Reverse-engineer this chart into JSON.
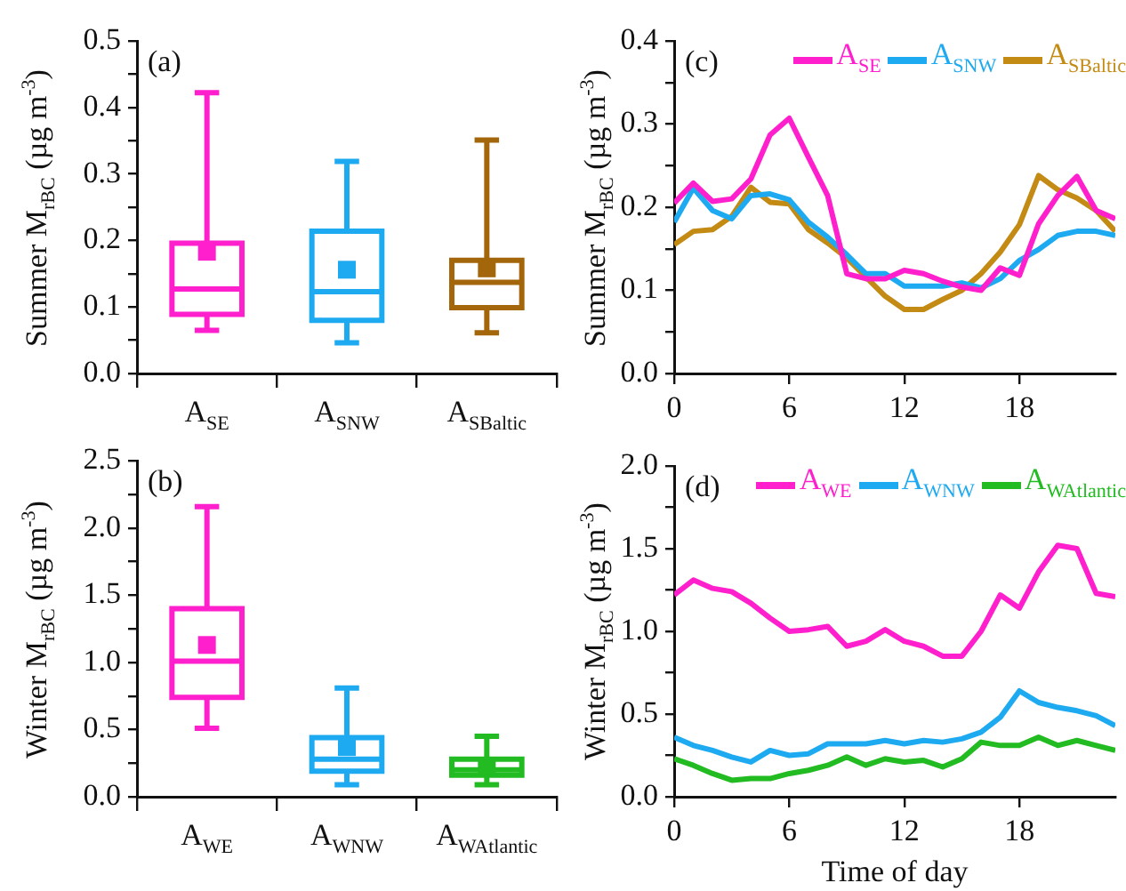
{
  "chart_data": [
    {
      "type": "box",
      "annotations": [
        "(a)"
      ],
      "ylabel": "Summer M$_{rBC}$ (µg m$^{-3}$)",
      "categories": [
        "A$_{SE}$",
        "A$_{SNW}$",
        "A$_{SBaltic}$"
      ],
      "colors": [
        "#ff1fcc",
        "#1eaaf1",
        "#a3660a"
      ],
      "boxes": [
        {
          "low": 0.065,
          "q1": 0.089,
          "median": 0.127,
          "q3": 0.196,
          "high": 0.422,
          "mean": 0.183
        },
        {
          "low": 0.046,
          "q1": 0.08,
          "median": 0.123,
          "q3": 0.214,
          "high": 0.319,
          "mean": 0.156
        },
        {
          "low": 0.061,
          "q1": 0.099,
          "median": 0.137,
          "q3": 0.17,
          "high": 0.351,
          "mean": 0.158
        }
      ],
      "ylim": [
        0,
        0.5
      ],
      "yticks": [
        {
          "value": 0,
          "label": "0.0"
        },
        {
          "value": 0.05,
          "label": null
        },
        {
          "value": 0.1,
          "label": "0.1"
        },
        {
          "value": 0.15,
          "label": null
        },
        {
          "value": 0.2,
          "label": "0.2"
        },
        {
          "value": 0.25,
          "label": null
        },
        {
          "value": 0.3,
          "label": "0.3"
        },
        {
          "value": 0.35,
          "label": null
        },
        {
          "value": 0.4,
          "label": "0.4"
        },
        {
          "value": 0.45,
          "label": null
        },
        {
          "value": 0.5,
          "label": "0.5"
        }
      ]
    },
    {
      "type": "line",
      "annotations": [
        "(c)"
      ],
      "ylabel": "Summer M$_{rBC}$ (µg m$^{-3}$)",
      "legend": "top right",
      "x": [
        0,
        1,
        2,
        3,
        4,
        5,
        6,
        7,
        8,
        9,
        10,
        11,
        12,
        13,
        14,
        15,
        16,
        17,
        18,
        19,
        20,
        21,
        22,
        23
      ],
      "series": [
        {
          "name": "A$_{SE}$",
          "color": "#ff1fcc",
          "values": [
            0.205,
            0.229,
            0.207,
            0.21,
            0.234,
            0.287,
            0.307,
            0.26,
            0.214,
            0.12,
            0.114,
            0.114,
            0.124,
            0.12,
            0.111,
            0.104,
            0.1,
            0.127,
            0.118,
            0.18,
            0.214,
            0.237,
            0.196,
            0.186
          ]
        },
        {
          "name": "A$_{SNW}$",
          "color": "#1eaaf1",
          "values": [
            0.182,
            0.223,
            0.196,
            0.186,
            0.214,
            0.216,
            0.209,
            0.182,
            0.164,
            0.143,
            0.12,
            0.12,
            0.105,
            0.105,
            0.105,
            0.109,
            0.103,
            0.114,
            0.136,
            0.149,
            0.166,
            0.171,
            0.171,
            0.166
          ]
        },
        {
          "name": "A$_{SBaltic}$",
          "color": "#c38a14",
          "values": [
            0.155,
            0.171,
            0.173,
            0.189,
            0.224,
            0.206,
            0.204,
            0.173,
            0.157,
            0.139,
            0.116,
            0.093,
            0.077,
            0.077,
            0.089,
            0.1,
            0.12,
            0.146,
            0.179,
            0.238,
            0.221,
            0.211,
            0.196,
            0.171
          ]
        }
      ],
      "xlim": [
        0,
        23
      ],
      "xticks": [
        0,
        6,
        12,
        18
      ],
      "ylim": [
        0,
        0.4
      ],
      "yticks": [
        {
          "value": 0,
          "label": "0.0"
        },
        {
          "value": 0.05,
          "label": null
        },
        {
          "value": 0.1,
          "label": "0.1"
        },
        {
          "value": 0.15,
          "label": null
        },
        {
          "value": 0.2,
          "label": "0.2"
        },
        {
          "value": 0.25,
          "label": null
        },
        {
          "value": 0.3,
          "label": "0.3"
        },
        {
          "value": 0.35,
          "label": null
        },
        {
          "value": 0.4,
          "label": "0.4"
        }
      ]
    },
    {
      "type": "box",
      "annotations": [
        "(b)"
      ],
      "ylabel": "Winter M$_{rBC}$ (µg m$^{-3}$)",
      "categories": [
        "A$_{WE}$",
        "A$_{WNW}$",
        "A$_{WAtlantic}$"
      ],
      "colors": [
        "#ff1fcc",
        "#1eaaf1",
        "#22bb22"
      ],
      "boxes": [
        {
          "low": 0.51,
          "q1": 0.74,
          "median": 1.01,
          "q3": 1.4,
          "high": 2.16,
          "mean": 1.13
        },
        {
          "low": 0.09,
          "q1": 0.19,
          "median": 0.28,
          "q3": 0.44,
          "high": 0.81,
          "mean": 0.37
        },
        {
          "low": 0.09,
          "q1": 0.16,
          "median": 0.2,
          "q3": 0.28,
          "high": 0.45,
          "mean": 0.23
        }
      ],
      "ylim": [
        0,
        2.5
      ],
      "yticks": [
        {
          "value": 0,
          "label": "0.0"
        },
        {
          "value": 0.25,
          "label": null
        },
        {
          "value": 0.5,
          "label": "0.5"
        },
        {
          "value": 0.75,
          "label": null
        },
        {
          "value": 1,
          "label": "1.0"
        },
        {
          "value": 1.25,
          "label": null
        },
        {
          "value": 1.5,
          "label": "1.5"
        },
        {
          "value": 1.75,
          "label": null
        },
        {
          "value": 2,
          "label": "2.0"
        },
        {
          "value": 2.25,
          "label": null
        },
        {
          "value": 2.5,
          "label": "2.5"
        }
      ]
    },
    {
      "type": "line",
      "annotations": [
        "(d)"
      ],
      "ylabel": "Winter M$_{rBC}$ (µg m$^{-3}$)",
      "xlabel": "Time of day",
      "legend": "top right",
      "x": [
        0,
        1,
        2,
        3,
        4,
        5,
        6,
        7,
        8,
        9,
        10,
        11,
        12,
        13,
        14,
        15,
        16,
        17,
        18,
        19,
        20,
        21,
        22,
        23
      ],
      "series": [
        {
          "name": "A$_{WE}$",
          "color": "#ff1fcc",
          "values": [
            1.22,
            1.31,
            1.26,
            1.24,
            1.17,
            1.08,
            1.0,
            1.01,
            1.03,
            0.91,
            0.94,
            1.01,
            0.94,
            0.91,
            0.85,
            0.85,
            1.0,
            1.22,
            1.14,
            1.36,
            1.52,
            1.5,
            1.23,
            1.21
          ]
        },
        {
          "name": "A$_{WNW}$",
          "color": "#1eaaf1",
          "values": [
            0.36,
            0.31,
            0.28,
            0.24,
            0.21,
            0.28,
            0.25,
            0.26,
            0.32,
            0.32,
            0.32,
            0.34,
            0.32,
            0.34,
            0.33,
            0.35,
            0.39,
            0.48,
            0.64,
            0.57,
            0.54,
            0.52,
            0.49,
            0.43
          ]
        },
        {
          "name": "A$_{WAtlantic}$",
          "color": "#22bb22",
          "values": [
            0.23,
            0.19,
            0.14,
            0.1,
            0.11,
            0.11,
            0.14,
            0.16,
            0.19,
            0.24,
            0.19,
            0.23,
            0.21,
            0.22,
            0.18,
            0.23,
            0.33,
            0.31,
            0.31,
            0.36,
            0.31,
            0.34,
            0.31,
            0.28
          ]
        }
      ],
      "xlim": [
        0,
        23
      ],
      "xticks": [
        0,
        6,
        12,
        18
      ],
      "ylim": [
        0,
        2
      ],
      "yticks": [
        {
          "value": 0,
          "label": "0.0"
        },
        {
          "value": 0.25,
          "label": null
        },
        {
          "value": 0.5,
          "label": "0.5"
        },
        {
          "value": 0.75,
          "label": null
        },
        {
          "value": 1,
          "label": "1.0"
        },
        {
          "value": 1.25,
          "label": null
        },
        {
          "value": 1.5,
          "label": "1.5"
        },
        {
          "value": 1.75,
          "label": null
        },
        {
          "value": 2,
          "label": "2.0"
        }
      ]
    }
  ]
}
